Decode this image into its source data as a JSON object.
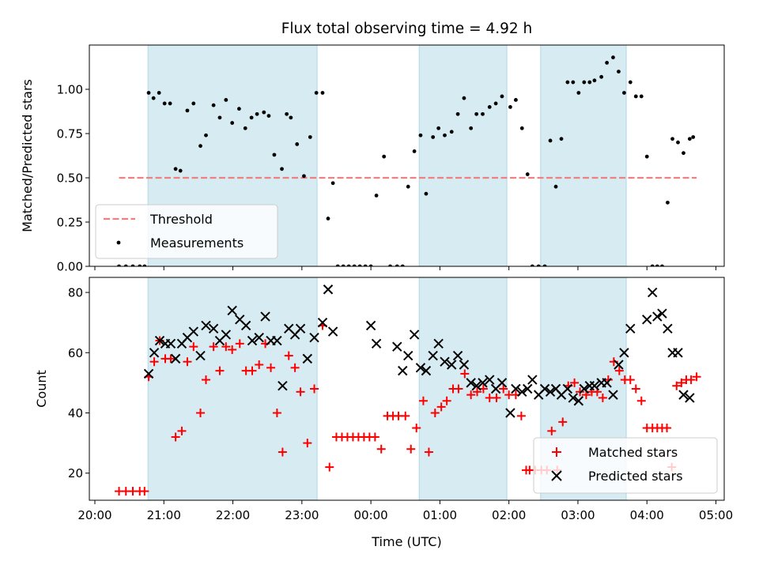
{
  "chart_data": {
    "title": "Flux total observing time = 4.92 h",
    "xlabel": "Time (UTC)",
    "x_unit": "hours since 20:00 UTC",
    "x_ticks": [
      {
        "v": 0,
        "label": "20:00"
      },
      {
        "v": 1,
        "label": "21:00"
      },
      {
        "v": 2,
        "label": "22:00"
      },
      {
        "v": 3,
        "label": "23:00"
      },
      {
        "v": 4,
        "label": "00:00"
      },
      {
        "v": 5,
        "label": "01:00"
      },
      {
        "v": 6,
        "label": "02:00"
      },
      {
        "v": 7,
        "label": "03:00"
      },
      {
        "v": 8,
        "label": "04:00"
      },
      {
        "v": 9,
        "label": "05:00"
      }
    ],
    "xlim": [
      -0.08,
      9.12
    ],
    "shaded_spans": [
      [
        0.77,
        3.22
      ],
      [
        4.7,
        5.97
      ],
      [
        6.46,
        7.7
      ]
    ],
    "panels": [
      {
        "type": "scatter",
        "ylabel": "Matched/Predicted stars",
        "ylim": [
          0,
          1.25
        ],
        "y_ticks": [
          {
            "v": 0,
            "label": "0.00"
          },
          {
            "v": 0.25,
            "label": "0.25"
          },
          {
            "v": 0.5,
            "label": "0.50"
          },
          {
            "v": 0.75,
            "label": "0.75"
          },
          {
            "v": 1.0,
            "label": "1.00"
          }
        ],
        "threshold": {
          "name": "Threshold",
          "value": 0.5,
          "x_range": [
            0.35,
            8.72
          ],
          "color": "#f08080"
        },
        "legend": {
          "position": "lower-left",
          "entries": [
            "Threshold",
            "Measurements"
          ]
        },
        "series": [
          {
            "name": "Measurements",
            "marker": "dot",
            "color": "#000000",
            "x": [
              0.35,
              0.45,
              0.55,
              0.65,
              0.72,
              0.78,
              0.85,
              0.93,
              1.01,
              1.09,
              1.17,
              1.24,
              1.34,
              1.43,
              1.53,
              1.61,
              1.72,
              1.81,
              1.9,
              1.99,
              2.09,
              2.18,
              2.27,
              2.35,
              2.45,
              2.52,
              2.6,
              2.71,
              2.78,
              2.84,
              2.93,
              3.03,
              3.12,
              3.21,
              3.3,
              3.38,
              3.45,
              3.52,
              3.6,
              3.68,
              3.76,
              3.84,
              3.92,
              4.0,
              4.08,
              4.19,
              4.28,
              4.38,
              4.46,
              4.54,
              4.63,
              4.72,
              4.8,
              4.9,
              4.98,
              5.07,
              5.17,
              5.26,
              5.35,
              5.45,
              5.53,
              5.62,
              5.72,
              5.81,
              5.9,
              6.02,
              6.1,
              6.19,
              6.27,
              6.34,
              6.43,
              6.52,
              6.6,
              6.68,
              6.76,
              6.85,
              6.93,
              7.01,
              7.09,
              7.17,
              7.24,
              7.34,
              7.42,
              7.51,
              7.59,
              7.67,
              7.76,
              7.84,
              7.92,
              8.0,
              8.08,
              8.15,
              8.22,
              8.3,
              8.37,
              8.45,
              8.53,
              8.62,
              8.67
            ],
            "y": [
              0.0,
              0.0,
              0.0,
              0.0,
              0.0,
              0.98,
              0.95,
              0.98,
              0.92,
              0.92,
              0.55,
              0.54,
              0.88,
              0.92,
              0.68,
              0.74,
              0.91,
              0.84,
              0.94,
              0.81,
              0.89,
              0.78,
              0.84,
              0.86,
              0.87,
              0.85,
              0.63,
              0.55,
              0.86,
              0.84,
              0.69,
              0.51,
              0.73,
              0.98,
              0.98,
              0.27,
              0.47,
              0.0,
              0.0,
              0.0,
              0.0,
              0.0,
              0.0,
              0.0,
              0.4,
              0.62,
              0.0,
              0.0,
              0.0,
              0.45,
              0.65,
              0.74,
              0.41,
              0.73,
              0.78,
              0.74,
              0.76,
              0.86,
              0.95,
              0.78,
              0.86,
              0.86,
              0.9,
              0.92,
              0.96,
              0.9,
              0.94,
              0.78,
              0.52,
              0.0,
              0.0,
              0.0,
              0.71,
              0.45,
              0.72,
              1.04,
              1.04,
              0.98,
              1.04,
              1.04,
              1.05,
              1.07,
              1.15,
              1.18,
              1.1,
              0.98,
              1.04,
              0.96,
              0.96,
              0.62,
              0.0,
              0.0,
              0.0,
              0.36,
              0.72,
              0.7,
              0.64,
              0.72,
              0.73
            ]
          }
        ]
      },
      {
        "type": "scatter",
        "ylabel": "Count",
        "ylim": [
          11,
          85
        ],
        "y_ticks": [
          {
            "v": 20,
            "label": "20"
          },
          {
            "v": 40,
            "label": "40"
          },
          {
            "v": 60,
            "label": "60"
          },
          {
            "v": 80,
            "label": "80"
          }
        ],
        "legend": {
          "position": "lower-right",
          "entries": [
            "Matched stars",
            "Predicted stars"
          ]
        },
        "series": [
          {
            "name": "Matched stars",
            "marker": "plus",
            "color": "#ff0000",
            "x": [
              0.35,
              0.45,
              0.55,
              0.65,
              0.72,
              0.78,
              0.86,
              0.94,
              1.02,
              1.1,
              1.17,
              1.26,
              1.34,
              1.43,
              1.53,
              1.61,
              1.72,
              1.81,
              1.9,
              1.99,
              2.1,
              2.19,
              2.28,
              2.38,
              2.47,
              2.55,
              2.64,
              2.72,
              2.81,
              2.9,
              2.98,
              3.08,
              3.18,
              3.3,
              3.4,
              3.5,
              3.58,
              3.66,
              3.74,
              3.82,
              3.9,
              3.98,
              4.06,
              4.15,
              4.24,
              4.32,
              4.4,
              4.5,
              4.58,
              4.66,
              4.76,
              4.84,
              4.93,
              5.02,
              5.1,
              5.19,
              5.27,
              5.36,
              5.45,
              5.54,
              5.63,
              5.72,
              5.82,
              5.92,
              6.0,
              6.1,
              6.18,
              6.25,
              6.3,
              6.38,
              6.47,
              6.55,
              6.62,
              6.7,
              6.78,
              6.86,
              6.95,
              7.03,
              7.12,
              7.2,
              7.28,
              7.36,
              7.44,
              7.52,
              7.6,
              7.68,
              7.76,
              7.84,
              7.92,
              8.0,
              8.08,
              8.15,
              8.22,
              8.29,
              8.36,
              8.43,
              8.5,
              8.57,
              8.64,
              8.72
            ],
            "y": [
              14,
              14,
              14,
              14,
              14,
              52,
              57,
              64,
              58,
              58,
              32,
              34,
              57,
              62,
              40,
              51,
              62,
              54,
              62,
              61,
              63,
              54,
              54,
              56,
              63,
              55,
              40,
              27,
              59,
              55,
              47,
              30,
              48,
              69,
              22,
              32,
              32,
              32,
              32,
              32,
              32,
              32,
              32,
              28,
              39,
              39,
              39,
              39,
              28,
              35,
              44,
              27,
              40,
              42,
              44,
              48,
              48,
              53,
              46,
              47,
              48,
              45,
              45,
              48,
              46,
              46,
              39,
              21,
              21,
              21,
              21,
              21,
              34,
              21,
              37,
              49,
              50,
              47,
              46,
              47,
              47,
              45,
              51,
              57,
              54,
              51,
              51,
              48,
              44,
              35,
              35,
              35,
              35,
              35,
              22,
              49,
              50,
              51,
              51,
              52
            ]
          },
          {
            "name": "Predicted stars",
            "marker": "x",
            "color": "#000000",
            "x": [
              0.78,
              0.86,
              0.94,
              1.02,
              1.1,
              1.17,
              1.26,
              1.34,
              1.43,
              1.53,
              1.61,
              1.72,
              1.81,
              1.9,
              1.99,
              2.1,
              2.19,
              2.28,
              2.38,
              2.47,
              2.55,
              2.64,
              2.72,
              2.81,
              2.9,
              2.98,
              3.08,
              3.18,
              3.3,
              3.38,
              3.45,
              4.0,
              4.08,
              4.38,
              4.46,
              4.54,
              4.63,
              4.72,
              4.8,
              4.9,
              4.98,
              5.07,
              5.17,
              5.26,
              5.35,
              5.45,
              5.53,
              5.62,
              5.72,
              5.81,
              5.9,
              6.02,
              6.1,
              6.19,
              6.27,
              6.34,
              6.43,
              6.52,
              6.6,
              6.68,
              6.76,
              6.85,
              6.93,
              7.01,
              7.09,
              7.17,
              7.24,
              7.34,
              7.42,
              7.51,
              7.59,
              7.67,
              7.76,
              8.0,
              8.08,
              8.15,
              8.22,
              8.3,
              8.37,
              8.45,
              8.53,
              8.62
            ],
            "y": [
              53,
              60,
              64,
              63,
              63,
              58,
              63,
              65,
              67,
              59,
              69,
              68,
              64,
              66,
              74,
              71,
              69,
              64,
              65,
              72,
              64,
              64,
              49,
              68,
              66,
              68,
              58,
              65,
              70,
              81,
              67,
              69,
              63,
              62,
              54,
              59,
              66,
              55,
              54,
              59,
              63,
              57,
              56,
              59,
              56,
              50,
              49,
              50,
              51,
              48,
              50,
              40,
              48,
              47,
              48,
              51,
              46,
              48,
              47,
              48,
              46,
              48,
              45,
              44,
              48,
              49,
              49,
              50,
              50,
              46,
              56,
              60,
              68,
              71,
              80,
              72,
              73,
              68,
              60,
              60,
              46,
              45
            ]
          }
        ]
      }
    ]
  }
}
